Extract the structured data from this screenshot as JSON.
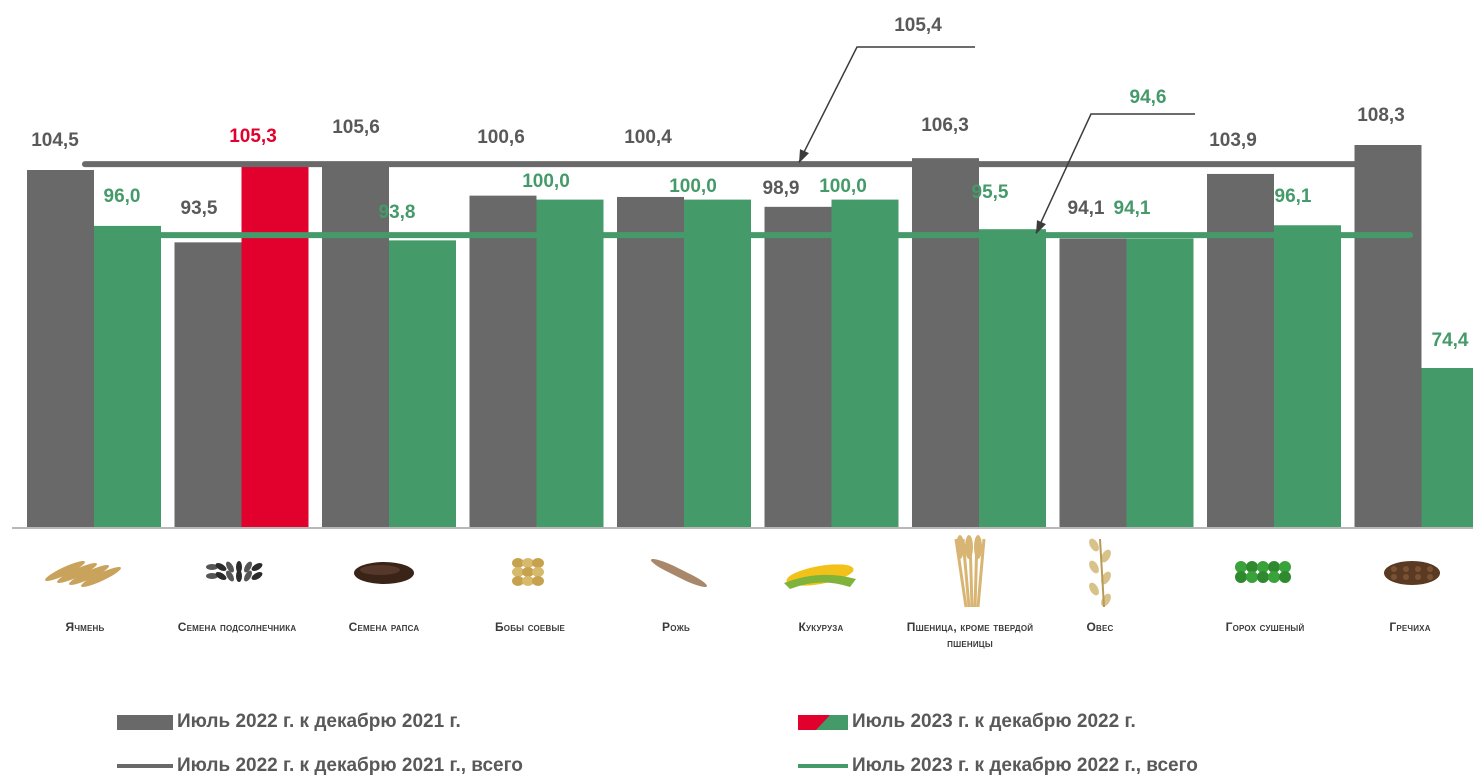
{
  "chart_data": {
    "type": "bar",
    "categories": [
      "Ячмень",
      "Семена подсолнечника",
      "Семена рапса",
      "Бобы соевые",
      "Рожь",
      "Кукуруза",
      "Пшеница, кроме твердой пшеницы",
      "Овес",
      "Горох сушеный",
      "Гречиха"
    ],
    "series": [
      {
        "name": "Июль 2022 г. к декабрю 2021 г.",
        "values": [
          104.5,
          93.5,
          105.6,
          100.6,
          100.4,
          98.9,
          106.3,
          94.1,
          103.9,
          108.3
        ],
        "labels": [
          "104,5",
          "93,5",
          "105,6",
          "100,6",
          "100,4",
          "98,9",
          "106,3",
          "94,1",
          "103,9",
          "108,3"
        ]
      },
      {
        "name": "Июль 2023 г. к декабрю 2022 г.",
        "values": [
          96.0,
          105.3,
          93.8,
          100.0,
          100.0,
          100.0,
          95.5,
          94.1,
          96.1,
          74.4
        ],
        "labels": [
          "96,0",
          "105,3",
          "93,8",
          "100,0",
          "100,0",
          "100,0",
          "95,5",
          "94,1",
          "96,1",
          "74,4"
        ]
      }
    ],
    "reference_lines": [
      {
        "name": "Июль 2022 г. к декабрю 2021 г., всего",
        "value": 105.4,
        "label": "105,4"
      },
      {
        "name": "Июль 2023 г. к декабрю 2022 г., всего",
        "value": 94.6,
        "label": "94,6"
      }
    ],
    "highlight": {
      "series": 1,
      "category": 1
    },
    "colors": {
      "series1": "#696969",
      "series2": "#459a6a",
      "highlight": "#e2002d",
      "ref1": "#696969",
      "ref2": "#459a6a",
      "axis": "#b8b8b8"
    },
    "ylim": [
      0,
      110
    ],
    "legend_position": "bottom",
    "category_icons": [
      "barley-icon",
      "sunflower-seeds-icon",
      "rapeseed-icon",
      "soybeans-icon",
      "rye-icon",
      "corn-icon",
      "wheat-icon",
      "oats-icon",
      "peas-icon",
      "buckwheat-icon"
    ]
  },
  "legend": {
    "items": [
      {
        "label": "Июль 2022 г. к декабрю 2021 г."
      },
      {
        "label": "Июль 2023 г. к декабрю 2022 г."
      },
      {
        "label": "Июль 2022 г. к декабрю 2021 г., всего"
      },
      {
        "label": "Июль 2023 г. к декабрю 2022 г., всего"
      }
    ]
  }
}
